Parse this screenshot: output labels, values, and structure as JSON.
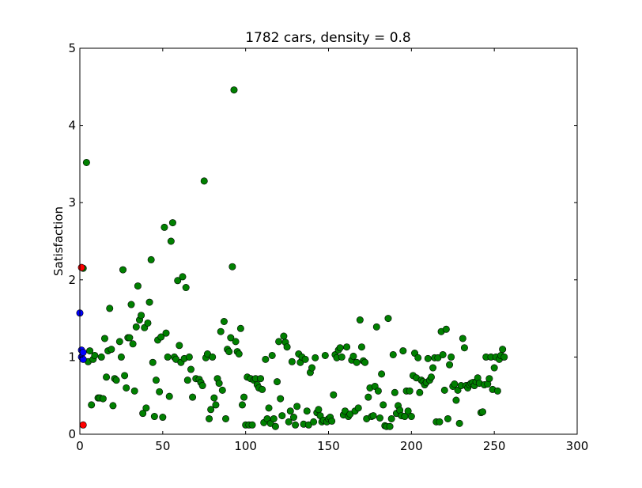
{
  "chart_data": {
    "type": "scatter",
    "title": "1782 cars, density = 0.8",
    "xlabel": "",
    "ylabel": "Satisfaction",
    "xlim": [
      0,
      300
    ],
    "ylim": [
      0,
      5
    ],
    "xticks": [
      "0",
      "50",
      "100",
      "150",
      "200",
      "250",
      "300"
    ],
    "yticks": [
      "0",
      "1",
      "2",
      "3",
      "4",
      "5"
    ],
    "grid": false,
    "series": [
      {
        "color": "#008000",
        "points": [
          [
            2,
            2.15
          ],
          [
            4,
            3.52
          ],
          [
            5,
            0.94
          ],
          [
            6,
            1.08
          ],
          [
            7,
            0.38
          ],
          [
            8,
            0.97
          ],
          [
            9,
            1.02
          ],
          [
            11,
            0.47
          ],
          [
            12,
            0.47
          ],
          [
            13,
            1.0
          ],
          [
            14,
            0.46
          ],
          [
            15,
            1.24
          ],
          [
            16,
            0.74
          ],
          [
            17,
            1.08
          ],
          [
            18,
            1.63
          ],
          [
            19,
            1.1
          ],
          [
            20,
            0.37
          ],
          [
            21,
            0.72
          ],
          [
            22,
            0.7
          ],
          [
            24,
            1.2
          ],
          [
            25,
            1.0
          ],
          [
            26,
            2.13
          ],
          [
            27,
            0.76
          ],
          [
            28,
            0.6
          ],
          [
            29,
            1.25
          ],
          [
            30,
            1.25
          ],
          [
            31,
            1.68
          ],
          [
            32,
            1.17
          ],
          [
            33,
            0.56
          ],
          [
            34,
            1.39
          ],
          [
            35,
            1.92
          ],
          [
            36,
            1.48
          ],
          [
            37,
            1.54
          ],
          [
            38,
            0.27
          ],
          [
            39,
            1.38
          ],
          [
            40,
            0.34
          ],
          [
            41,
            1.44
          ],
          [
            42,
            1.71
          ],
          [
            43,
            2.26
          ],
          [
            44,
            0.93
          ],
          [
            45,
            0.23
          ],
          [
            46,
            0.7
          ],
          [
            47,
            1.22
          ],
          [
            48,
            0.55
          ],
          [
            49,
            1.26
          ],
          [
            50,
            0.22
          ],
          [
            51,
            2.68
          ],
          [
            52,
            1.31
          ],
          [
            53,
            1.0
          ],
          [
            54,
            0.49
          ],
          [
            55,
            2.5
          ],
          [
            56,
            2.74
          ],
          [
            57,
            1.0
          ],
          [
            58,
            0.97
          ],
          [
            59,
            1.99
          ],
          [
            60,
            1.15
          ],
          [
            61,
            0.93
          ],
          [
            62,
            2.04
          ],
          [
            63,
            0.98
          ],
          [
            64,
            1.9
          ],
          [
            65,
            0.7
          ],
          [
            66,
            1.0
          ],
          [
            67,
            0.84
          ],
          [
            68,
            0.48
          ],
          [
            70,
            0.72
          ],
          [
            72,
            0.71
          ],
          [
            73,
            0.67
          ],
          [
            74,
            0.63
          ],
          [
            75,
            3.28
          ],
          [
            76,
            0.99
          ],
          [
            77,
            1.04
          ],
          [
            78,
            0.2
          ],
          [
            79,
            0.32
          ],
          [
            80,
            1.0
          ],
          [
            81,
            0.47
          ],
          [
            82,
            0.38
          ],
          [
            83,
            0.72
          ],
          [
            84,
            0.66
          ],
          [
            85,
            1.33
          ],
          [
            86,
            0.57
          ],
          [
            87,
            1.46
          ],
          [
            88,
            0.2
          ],
          [
            89,
            1.1
          ],
          [
            90,
            1.07
          ],
          [
            91,
            1.25
          ],
          [
            92,
            2.17
          ],
          [
            93,
            4.46
          ],
          [
            94,
            1.2
          ],
          [
            95,
            1.07
          ],
          [
            96,
            1.04
          ],
          [
            97,
            1.37
          ],
          [
            98,
            0.38
          ],
          [
            99,
            0.48
          ],
          [
            100,
            0.12
          ],
          [
            101,
            0.74
          ],
          [
            102,
            0.12
          ],
          [
            103,
            0.72
          ],
          [
            104,
            0.12
          ],
          [
            105,
            0.7
          ],
          [
            106,
            0.72
          ],
          [
            107,
            0.64
          ],
          [
            108,
            0.6
          ],
          [
            109,
            0.72
          ],
          [
            110,
            0.58
          ],
          [
            111,
            0.15
          ],
          [
            112,
            0.97
          ],
          [
            113,
            0.2
          ],
          [
            114,
            0.34
          ],
          [
            115,
            0.14
          ],
          [
            116,
            1.02
          ],
          [
            117,
            0.2
          ],
          [
            118,
            0.1
          ],
          [
            119,
            0.68
          ],
          [
            120,
            1.2
          ],
          [
            121,
            0.46
          ],
          [
            122,
            0.24
          ],
          [
            123,
            1.27
          ],
          [
            124,
            1.19
          ],
          [
            125,
            1.13
          ],
          [
            126,
            0.16
          ],
          [
            127,
            0.3
          ],
          [
            128,
            0.94
          ],
          [
            129,
            0.22
          ],
          [
            130,
            0.12
          ],
          [
            131,
            0.36
          ],
          [
            132,
            1.04
          ],
          [
            133,
            0.93
          ],
          [
            134,
            1.0
          ],
          [
            135,
            0.13
          ],
          [
            136,
            0.97
          ],
          [
            137,
            0.3
          ],
          [
            138,
            0.12
          ],
          [
            139,
            0.8
          ],
          [
            140,
            0.86
          ],
          [
            141,
            0.16
          ],
          [
            142,
            0.99
          ],
          [
            143,
            0.28
          ],
          [
            144,
            0.32
          ],
          [
            145,
            0.24
          ],
          [
            146,
            0.16
          ],
          [
            147,
            0.18
          ],
          [
            148,
            1.02
          ],
          [
            149,
            0.16
          ],
          [
            150,
            0.2
          ],
          [
            151,
            0.22
          ],
          [
            152,
            0.17
          ],
          [
            153,
            0.51
          ],
          [
            154,
            1.03
          ],
          [
            155,
            0.99
          ],
          [
            156,
            1.09
          ],
          [
            157,
            1.12
          ],
          [
            158,
            1.0
          ],
          [
            159,
            0.25
          ],
          [
            160,
            0.3
          ],
          [
            161,
            1.13
          ],
          [
            162,
            0.23
          ],
          [
            163,
            0.26
          ],
          [
            164,
            0.96
          ],
          [
            165,
            1.01
          ],
          [
            166,
            0.3
          ],
          [
            167,
            0.93
          ],
          [
            168,
            0.34
          ],
          [
            169,
            1.48
          ],
          [
            170,
            1.13
          ],
          [
            171,
            0.95
          ],
          [
            172,
            0.93
          ],
          [
            173,
            0.2
          ],
          [
            174,
            0.48
          ],
          [
            175,
            0.6
          ],
          [
            176,
            0.23
          ],
          [
            177,
            0.24
          ],
          [
            178,
            0.62
          ],
          [
            179,
            1.39
          ],
          [
            180,
            0.56
          ],
          [
            181,
            0.21
          ],
          [
            182,
            0.78
          ],
          [
            183,
            0.38
          ],
          [
            184,
            0.11
          ],
          [
            185,
            0.1
          ],
          [
            186,
            1.5
          ],
          [
            187,
            0.1
          ],
          [
            188,
            0.2
          ],
          [
            189,
            1.03
          ],
          [
            190,
            0.54
          ],
          [
            191,
            0.27
          ],
          [
            192,
            0.37
          ],
          [
            193,
            0.31
          ],
          [
            194,
            0.24
          ],
          [
            195,
            1.08
          ],
          [
            196,
            0.23
          ],
          [
            197,
            0.56
          ],
          [
            198,
            0.3
          ],
          [
            199,
            0.56
          ],
          [
            200,
            0.23
          ],
          [
            201,
            0.76
          ],
          [
            202,
            1.05
          ],
          [
            203,
            0.73
          ],
          [
            204,
            0.99
          ],
          [
            205,
            0.54
          ],
          [
            206,
            0.7
          ],
          [
            207,
            0.68
          ],
          [
            208,
            0.64
          ],
          [
            209,
            0.67
          ],
          [
            210,
            0.98
          ],
          [
            211,
            0.7
          ],
          [
            212,
            0.74
          ],
          [
            213,
            0.86
          ],
          [
            214,
            0.99
          ],
          [
            215,
            0.16
          ],
          [
            216,
            0.99
          ],
          [
            217,
            0.16
          ],
          [
            218,
            1.33
          ],
          [
            219,
            1.03
          ],
          [
            220,
            0.57
          ],
          [
            221,
            1.36
          ],
          [
            222,
            0.2
          ],
          [
            223,
            0.9
          ],
          [
            224,
            1.0
          ],
          [
            225,
            0.62
          ],
          [
            226,
            0.65
          ],
          [
            227,
            0.44
          ],
          [
            228,
            0.57
          ],
          [
            229,
            0.14
          ],
          [
            230,
            0.63
          ],
          [
            231,
            1.24
          ],
          [
            232,
            1.12
          ],
          [
            233,
            0.63
          ],
          [
            234,
            0.6
          ],
          [
            235,
            0.64
          ],
          [
            236,
            0.66
          ],
          [
            237,
            0.67
          ],
          [
            238,
            0.63
          ],
          [
            239,
            0.68
          ],
          [
            240,
            0.73
          ],
          [
            241,
            0.66
          ],
          [
            242,
            0.28
          ],
          [
            243,
            0.29
          ],
          [
            244,
            0.64
          ],
          [
            245,
            1.0
          ],
          [
            246,
            0.65
          ],
          [
            247,
            0.72
          ],
          [
            248,
            1.0
          ],
          [
            249,
            0.58
          ],
          [
            250,
            0.86
          ],
          [
            251,
            1.0
          ],
          [
            252,
            0.56
          ],
          [
            253,
            0.97
          ],
          [
            254,
            1.02
          ],
          [
            255,
            1.1
          ],
          [
            256,
            1.0
          ]
        ]
      },
      {
        "color": "#0000ff",
        "points": [
          [
            0,
            1.57
          ],
          [
            1,
            1.09
          ],
          [
            1,
            1.0
          ],
          [
            2,
            1.06
          ],
          [
            2,
            0.97
          ]
        ]
      },
      {
        "color": "#ff0000",
        "points": [
          [
            1,
            2.16
          ],
          [
            2,
            0.12
          ]
        ]
      }
    ]
  }
}
